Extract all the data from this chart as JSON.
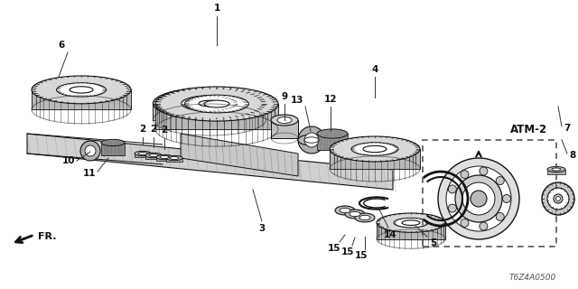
{
  "bg_color": "#ffffff",
  "line_color": "#111111",
  "gear_fill": "#d8d8d8",
  "gear_dark": "#888888",
  "atm2_label": "ATM-2",
  "fr_label": "FR.",
  "part_code": "T6Z4A0500",
  "shaft_color": "#cccccc",
  "dashed_color": "#666666"
}
